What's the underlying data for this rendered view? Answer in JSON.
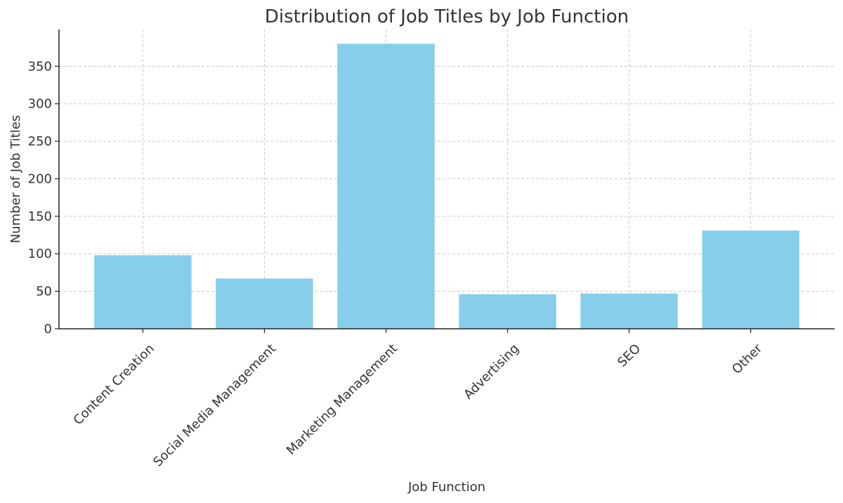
{
  "chart_data": {
    "type": "bar",
    "title": "Distribution of Job Titles by Job Function",
    "x_label": "Job Function",
    "y_label": "Number of Job Titles",
    "categories": [
      "Content Creation",
      "Social Media Management",
      "Marketing Management",
      "Advertising",
      "SEO",
      "Other"
    ],
    "values": [
      98,
      67,
      380,
      46,
      47,
      131
    ],
    "color": "#87ceeb",
    "ylim": [
      0,
      399
    ],
    "yticks": [
      0,
      50,
      100,
      150,
      200,
      250,
      300,
      350
    ],
    "grid": true
  }
}
